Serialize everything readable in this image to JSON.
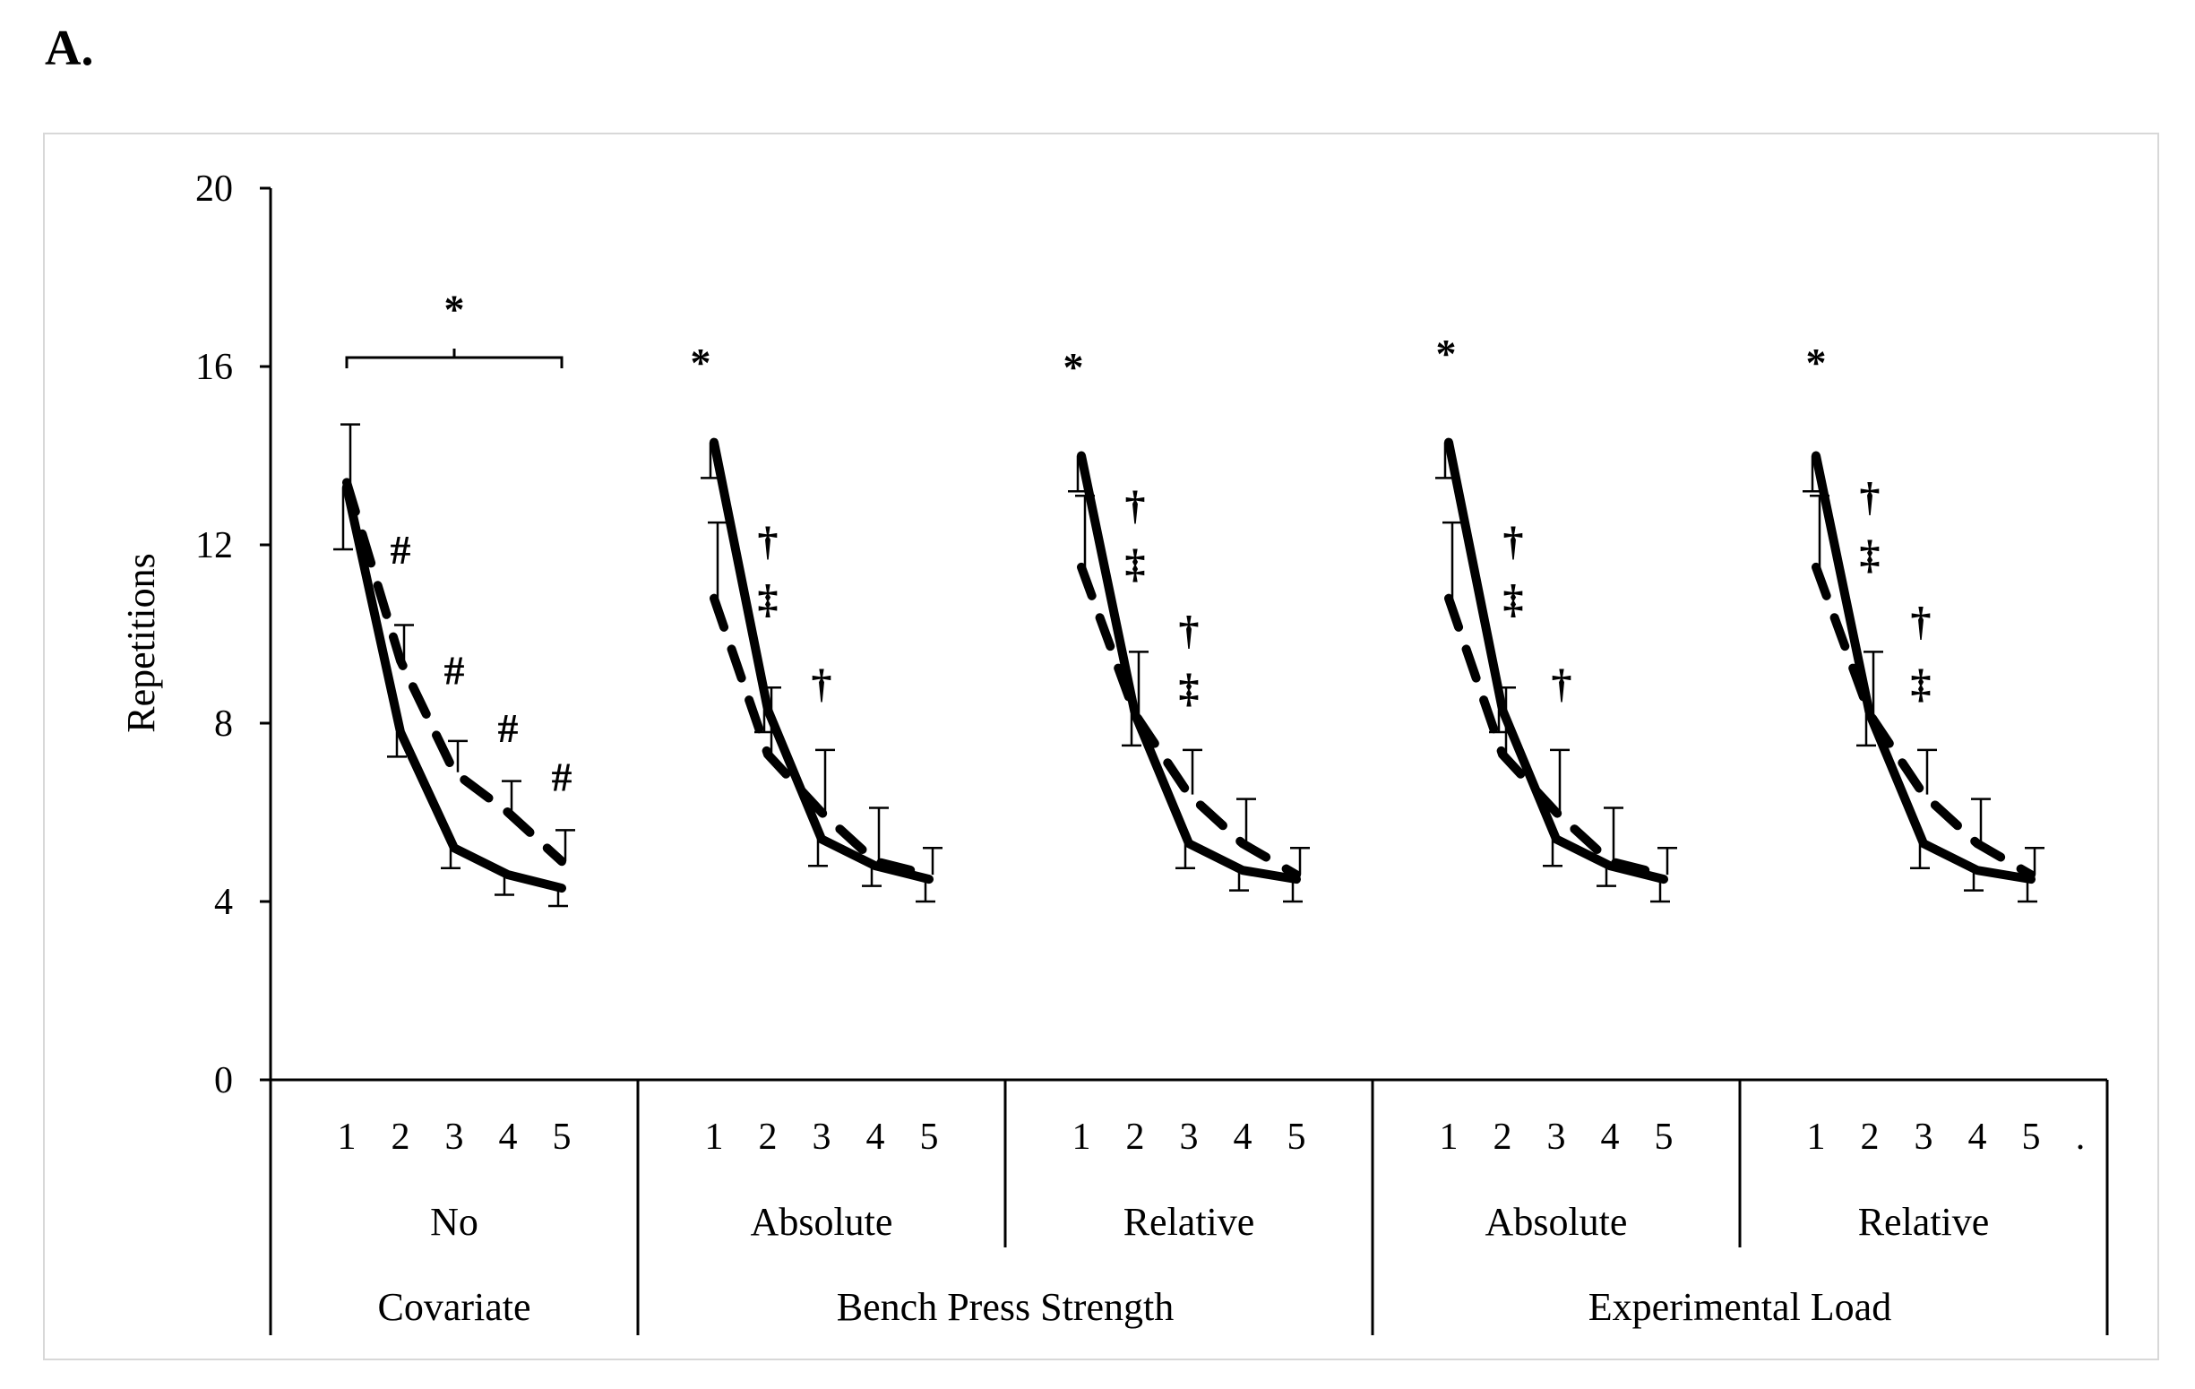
{
  "panel_label": "A.",
  "chart_data": {
    "type": "line",
    "ylabel": "Repetitions",
    "ylim": [
      0,
      20
    ],
    "yticks": [
      0,
      4,
      8,
      12,
      16,
      20
    ],
    "x": [
      1,
      2,
      3,
      4,
      5
    ],
    "trailing_mark": ".",
    "groups": [
      {
        "level1": "No",
        "level2": "Covariate",
        "series": [
          {
            "name": "solid",
            "style": "solid",
            "values": [
              13.3,
              7.8,
              5.2,
              4.6,
              4.3
            ],
            "err": [
              1.4,
              0.55,
              0.45,
              0.45,
              0.4
            ],
            "err_dir": "down"
          },
          {
            "name": "dashed",
            "style": "dashed",
            "values": [
              13.4,
              9.4,
              6.9,
              6.0,
              4.9
            ],
            "err": [
              1.3,
              0.8,
              0.7,
              0.7,
              0.7
            ],
            "err_dir": "up"
          }
        ],
        "annotations": [
          {
            "text": "*",
            "x": 3,
            "y": 17.3
          },
          {
            "text": "#",
            "x": 2,
            "y": 11.9
          },
          {
            "text": "#",
            "x": 3,
            "y": 9.2
          },
          {
            "text": "#",
            "x": 4,
            "y": 7.9
          },
          {
            "text": "#",
            "x": 5,
            "y": 6.8
          }
        ],
        "bracket": {
          "from": 1,
          "to": 5,
          "y": 16.2
        }
      },
      {
        "level1": "Absolute",
        "level2": "Bench Press Strength",
        "series": [
          {
            "name": "solid",
            "style": "solid",
            "values": [
              14.3,
              8.3,
              5.4,
              4.8,
              4.5
            ],
            "err": [
              0.8,
              0.5,
              0.6,
              0.45,
              0.5
            ],
            "err_dir": "down"
          },
          {
            "name": "dashed",
            "style": "dashed",
            "values": [
              10.8,
              7.3,
              6.0,
              4.9,
              4.6
            ],
            "err": [
              1.7,
              1.5,
              1.4,
              1.2,
              0.6
            ],
            "err_dir": "up"
          }
        ],
        "annotations": [
          {
            "text": "*",
            "x": 0.75,
            "y": 16.1
          },
          {
            "text": "†",
            "x": 2,
            "y": 12.1
          },
          {
            "text": "‡",
            "x": 2,
            "y": 10.8
          },
          {
            "text": "†",
            "x": 3,
            "y": 8.9
          }
        ]
      },
      {
        "level1": "Relative",
        "level2": "Bench Press Strength",
        "series": [
          {
            "name": "solid",
            "style": "solid",
            "values": [
              14.0,
              8.2,
              5.3,
              4.7,
              4.5
            ],
            "err": [
              0.8,
              0.7,
              0.55,
              0.45,
              0.5
            ],
            "err_dir": "down"
          },
          {
            "name": "dashed",
            "style": "dashed",
            "values": [
              11.5,
              8.2,
              6.4,
              5.3,
              4.6
            ],
            "err": [
              1.6,
              1.4,
              1.0,
              1.0,
              0.6
            ],
            "err_dir": "up"
          }
        ],
        "annotations": [
          {
            "text": "*",
            "x": 0.85,
            "y": 16.0
          },
          {
            "text": "†",
            "x": 2,
            "y": 12.9
          },
          {
            "text": "‡",
            "x": 2,
            "y": 11.6
          },
          {
            "text": "†",
            "x": 3,
            "y": 10.1
          },
          {
            "text": "‡",
            "x": 3,
            "y": 8.8
          }
        ]
      },
      {
        "level1": "Absolute",
        "level2": "Experimental Load",
        "series": [
          {
            "name": "solid",
            "style": "solid",
            "values": [
              14.3,
              8.3,
              5.4,
              4.8,
              4.5
            ],
            "err": [
              0.8,
              0.5,
              0.6,
              0.45,
              0.5
            ],
            "err_dir": "down"
          },
          {
            "name": "dashed",
            "style": "dashed",
            "values": [
              10.8,
              7.3,
              6.0,
              4.9,
              4.6
            ],
            "err": [
              1.7,
              1.5,
              1.4,
              1.2,
              0.6
            ],
            "err_dir": "up"
          }
        ],
        "annotations": [
          {
            "text": "*",
            "x": 0.95,
            "y": 16.3
          },
          {
            "text": "†",
            "x": 2.2,
            "y": 12.1
          },
          {
            "text": "‡",
            "x": 2.2,
            "y": 10.8
          },
          {
            "text": "†",
            "x": 3.1,
            "y": 8.9
          }
        ]
      },
      {
        "level1": "Relative",
        "level2": "Experimental Load",
        "series": [
          {
            "name": "solid",
            "style": "solid",
            "values": [
              14.0,
              8.2,
              5.3,
              4.7,
              4.5
            ],
            "err": [
              0.8,
              0.7,
              0.55,
              0.45,
              0.5
            ],
            "err_dir": "down"
          },
          {
            "name": "dashed",
            "style": "dashed",
            "values": [
              11.5,
              8.2,
              6.4,
              5.3,
              4.6
            ],
            "err": [
              1.6,
              1.4,
              1.0,
              1.0,
              0.6
            ],
            "err_dir": "up"
          }
        ],
        "annotations": [
          {
            "text": "*",
            "x": 1.0,
            "y": 16.1
          },
          {
            "text": "†",
            "x": 2.0,
            "y": 13.1
          },
          {
            "text": "‡",
            "x": 2.0,
            "y": 11.8
          },
          {
            "text": "†",
            "x": 2.95,
            "y": 10.3
          },
          {
            "text": "‡",
            "x": 2.95,
            "y": 8.9
          }
        ]
      }
    ],
    "level2_groups": [
      {
        "label": "Covariate",
        "span": [
          0,
          0
        ]
      },
      {
        "label": "Bench Press Strength",
        "span": [
          1,
          2
        ]
      },
      {
        "label": "Experimental Load",
        "span": [
          3,
          4
        ]
      }
    ]
  }
}
